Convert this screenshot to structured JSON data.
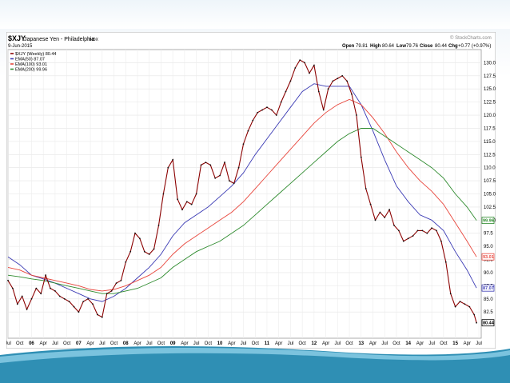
{
  "chart_data": {
    "type": "line",
    "symbol": "$XJY",
    "title": "Japanese Yen - Philadelphia",
    "exchange": "INDX",
    "date": "9-Jun-2015",
    "quote": {
      "open_label": "Open",
      "open": "79.81",
      "high_label": "High",
      "high": "80.64",
      "low_label": "Low",
      "low": "79.76",
      "close_label": "Close",
      "close": "80.44",
      "chg_label": "Chg",
      "chg": "+0.77 (+0.97%)"
    },
    "watermark": "© StockCharts.com",
    "legend": [
      {
        "label": "$XJY (Weekly) 80.44",
        "color": "#8b0000"
      },
      {
        "label": "EMA(50) 87.07",
        "color": "#3a3ab4"
      },
      {
        "label": "EMA(100) 93.01",
        "color": "#e8463c"
      },
      {
        "label": "EMA(200) 99.96",
        "color": "#2e8b2e"
      }
    ],
    "ylim": [
      77.5,
      132.5
    ],
    "y_ticks": [
      "82.5",
      "85.0",
      "87.5",
      "90.0",
      "92.5",
      "95.0",
      "97.5",
      "100.0",
      "102.5",
      "105.0",
      "107.5",
      "110.0",
      "112.5",
      "115.0",
      "117.5",
      "120.0",
      "122.5",
      "125.0",
      "127.5",
      "130.0"
    ],
    "y_tick_values": [
      82.5,
      85,
      87.5,
      90,
      92.5,
      95,
      97.5,
      100,
      102.5,
      105,
      107.5,
      110,
      112.5,
      115,
      117.5,
      120,
      122.5,
      125,
      127.5,
      130
    ],
    "end_labels": [
      {
        "text": "99.96",
        "value": 99.96,
        "color": "#2e8b2e"
      },
      {
        "text": "93.01",
        "value": 93.01,
        "color": "#e8463c"
      },
      {
        "text": "87.07",
        "value": 87.07,
        "color": "#3a3ab4"
      },
      {
        "text": "80.44",
        "value": 80.44,
        "color": "#000000"
      }
    ],
    "x_range": [
      2005.5,
      2015.55
    ],
    "x_ticks": [
      {
        "label": "Jul",
        "t": 2005.5,
        "bold": false
      },
      {
        "label": "Oct",
        "t": 2005.75,
        "bold": false
      },
      {
        "label": "06",
        "t": 2006.0,
        "bold": true
      },
      {
        "label": "Apr",
        "t": 2006.25,
        "bold": false
      },
      {
        "label": "Jul",
        "t": 2006.5,
        "bold": false
      },
      {
        "label": "Oct",
        "t": 2006.75,
        "bold": false
      },
      {
        "label": "07",
        "t": 2007.0,
        "bold": true
      },
      {
        "label": "Apr",
        "t": 2007.25,
        "bold": false
      },
      {
        "label": "Jul",
        "t": 2007.5,
        "bold": false
      },
      {
        "label": "Oct",
        "t": 2007.75,
        "bold": false
      },
      {
        "label": "08",
        "t": 2008.0,
        "bold": true
      },
      {
        "label": "Apr",
        "t": 2008.25,
        "bold": false
      },
      {
        "label": "Jul",
        "t": 2008.5,
        "bold": false
      },
      {
        "label": "Oct",
        "t": 2008.75,
        "bold": false
      },
      {
        "label": "09",
        "t": 2009.0,
        "bold": true
      },
      {
        "label": "Apr",
        "t": 2009.25,
        "bold": false
      },
      {
        "label": "Jul",
        "t": 2009.5,
        "bold": false
      },
      {
        "label": "Oct",
        "t": 2009.75,
        "bold": false
      },
      {
        "label": "10",
        "t": 2010.0,
        "bold": true
      },
      {
        "label": "Apr",
        "t": 2010.25,
        "bold": false
      },
      {
        "label": "Jul",
        "t": 2010.5,
        "bold": false
      },
      {
        "label": "Oct",
        "t": 2010.75,
        "bold": false
      },
      {
        "label": "11",
        "t": 2011.0,
        "bold": true
      },
      {
        "label": "Apr",
        "t": 2011.25,
        "bold": false
      },
      {
        "label": "Jul",
        "t": 2011.5,
        "bold": false
      },
      {
        "label": "Oct",
        "t": 2011.75,
        "bold": false
      },
      {
        "label": "12",
        "t": 2012.0,
        "bold": true
      },
      {
        "label": "Apr",
        "t": 2012.25,
        "bold": false
      },
      {
        "label": "Jul",
        "t": 2012.5,
        "bold": false
      },
      {
        "label": "Oct",
        "t": 2012.75,
        "bold": false
      },
      {
        "label": "13",
        "t": 2013.0,
        "bold": true
      },
      {
        "label": "Apr",
        "t": 2013.25,
        "bold": false
      },
      {
        "label": "Jul",
        "t": 2013.5,
        "bold": false
      },
      {
        "label": "Oct",
        "t": 2013.75,
        "bold": false
      },
      {
        "label": "14",
        "t": 2014.0,
        "bold": true
      },
      {
        "label": "Apr",
        "t": 2014.25,
        "bold": false
      },
      {
        "label": "Jul",
        "t": 2014.5,
        "bold": false
      },
      {
        "label": "Oct",
        "t": 2014.75,
        "bold": false
      },
      {
        "label": "15",
        "t": 2015.0,
        "bold": true
      },
      {
        "label": "Apr",
        "t": 2015.25,
        "bold": false
      },
      {
        "label": "Jul",
        "t": 2015.5,
        "bold": false
      }
    ],
    "series": [
      {
        "name": "$XJY (Weekly)",
        "color": "#8b0000",
        "style": "bars",
        "points": [
          [
            2005.5,
            88.5
          ],
          [
            2005.6,
            87.0
          ],
          [
            2005.7,
            84.0
          ],
          [
            2005.8,
            85.5
          ],
          [
            2005.9,
            83.0
          ],
          [
            2006.0,
            85.0
          ],
          [
            2006.1,
            87.0
          ],
          [
            2006.2,
            86.0
          ],
          [
            2006.3,
            89.5
          ],
          [
            2006.4,
            87.0
          ],
          [
            2006.5,
            86.5
          ],
          [
            2006.6,
            85.5
          ],
          [
            2006.7,
            85.0
          ],
          [
            2006.8,
            84.5
          ],
          [
            2006.9,
            83.5
          ],
          [
            2007.0,
            82.5
          ],
          [
            2007.1,
            84.5
          ],
          [
            2007.2,
            85.0
          ],
          [
            2007.3,
            84.0
          ],
          [
            2007.4,
            82.0
          ],
          [
            2007.5,
            81.5
          ],
          [
            2007.6,
            86.0
          ],
          [
            2007.7,
            86.5
          ],
          [
            2007.8,
            88.0
          ],
          [
            2007.9,
            88.5
          ],
          [
            2008.0,
            92.0
          ],
          [
            2008.1,
            94.0
          ],
          [
            2008.2,
            97.5
          ],
          [
            2008.3,
            96.5
          ],
          [
            2008.4,
            94.0
          ],
          [
            2008.5,
            93.5
          ],
          [
            2008.6,
            94.5
          ],
          [
            2008.7,
            99.0
          ],
          [
            2008.8,
            105.0
          ],
          [
            2008.9,
            110.0
          ],
          [
            2009.0,
            111.5
          ],
          [
            2009.1,
            104.0
          ],
          [
            2009.2,
            102.0
          ],
          [
            2009.3,
            103.5
          ],
          [
            2009.4,
            103.0
          ],
          [
            2009.5,
            105.0
          ],
          [
            2009.6,
            110.5
          ],
          [
            2009.7,
            111.0
          ],
          [
            2009.8,
            110.5
          ],
          [
            2009.9,
            108.0
          ],
          [
            2010.0,
            108.5
          ],
          [
            2010.1,
            111.0
          ],
          [
            2010.2,
            107.5
          ],
          [
            2010.3,
            107.0
          ],
          [
            2010.4,
            110.0
          ],
          [
            2010.5,
            114.5
          ],
          [
            2010.6,
            117.0
          ],
          [
            2010.7,
            119.0
          ],
          [
            2010.8,
            120.5
          ],
          [
            2010.9,
            121.0
          ],
          [
            2011.0,
            121.5
          ],
          [
            2011.1,
            121.0
          ],
          [
            2011.2,
            120.0
          ],
          [
            2011.3,
            122.5
          ],
          [
            2011.4,
            124.5
          ],
          [
            2011.5,
            126.5
          ],
          [
            2011.6,
            129.0
          ],
          [
            2011.7,
            130.5
          ],
          [
            2011.8,
            130.0
          ],
          [
            2011.9,
            128.0
          ],
          [
            2012.0,
            129.5
          ],
          [
            2012.1,
            124.5
          ],
          [
            2012.2,
            121.0
          ],
          [
            2012.3,
            125.0
          ],
          [
            2012.4,
            126.5
          ],
          [
            2012.5,
            127.0
          ],
          [
            2012.6,
            127.5
          ],
          [
            2012.7,
            126.5
          ],
          [
            2012.8,
            124.0
          ],
          [
            2012.9,
            120.0
          ],
          [
            2013.0,
            112.0
          ],
          [
            2013.1,
            106.0
          ],
          [
            2013.2,
            103.0
          ],
          [
            2013.3,
            100.0
          ],
          [
            2013.4,
            101.5
          ],
          [
            2013.5,
            100.5
          ],
          [
            2013.6,
            102.0
          ],
          [
            2013.7,
            99.0
          ],
          [
            2013.8,
            98.0
          ],
          [
            2013.9,
            96.0
          ],
          [
            2014.0,
            96.5
          ],
          [
            2014.1,
            97.0
          ],
          [
            2014.2,
            98.0
          ],
          [
            2014.3,
            98.0
          ],
          [
            2014.4,
            97.5
          ],
          [
            2014.5,
            98.5
          ],
          [
            2014.6,
            98.0
          ],
          [
            2014.7,
            96.0
          ],
          [
            2014.8,
            92.0
          ],
          [
            2014.9,
            86.0
          ],
          [
            2015.0,
            83.5
          ],
          [
            2015.1,
            84.5
          ],
          [
            2015.2,
            84.0
          ],
          [
            2015.3,
            83.5
          ],
          [
            2015.4,
            82.0
          ],
          [
            2015.45,
            80.44
          ]
        ]
      },
      {
        "name": "EMA(50)",
        "color": "#3a3ab4",
        "style": "line",
        "points": [
          [
            2005.5,
            93.0
          ],
          [
            2005.75,
            91.5
          ],
          [
            2006.0,
            89.5
          ],
          [
            2006.25,
            88.8
          ],
          [
            2006.5,
            88.0
          ],
          [
            2006.75,
            87.0
          ],
          [
            2007.0,
            86.0
          ],
          [
            2007.25,
            85.0
          ],
          [
            2007.5,
            84.5
          ],
          [
            2007.75,
            85.5
          ],
          [
            2008.0,
            87.0
          ],
          [
            2008.25,
            89.0
          ],
          [
            2008.5,
            91.0
          ],
          [
            2008.75,
            93.5
          ],
          [
            2009.0,
            97.0
          ],
          [
            2009.25,
            99.5
          ],
          [
            2009.5,
            101.0
          ],
          [
            2009.75,
            102.5
          ],
          [
            2010.0,
            104.5
          ],
          [
            2010.25,
            106.5
          ],
          [
            2010.5,
            109.0
          ],
          [
            2010.75,
            112.5
          ],
          [
            2011.0,
            115.5
          ],
          [
            2011.25,
            118.5
          ],
          [
            2011.5,
            121.5
          ],
          [
            2011.75,
            124.5
          ],
          [
            2012.0,
            126.0
          ],
          [
            2012.25,
            125.5
          ],
          [
            2012.5,
            125.5
          ],
          [
            2012.75,
            125.5
          ],
          [
            2013.0,
            122.0
          ],
          [
            2013.25,
            117.0
          ],
          [
            2013.5,
            111.5
          ],
          [
            2013.75,
            106.5
          ],
          [
            2014.0,
            103.5
          ],
          [
            2014.25,
            101.0
          ],
          [
            2014.5,
            100.0
          ],
          [
            2014.75,
            98.0
          ],
          [
            2015.0,
            94.0
          ],
          [
            2015.25,
            90.5
          ],
          [
            2015.45,
            87.07
          ]
        ]
      },
      {
        "name": "EMA(100)",
        "color": "#e8463c",
        "style": "line",
        "points": [
          [
            2005.5,
            91.0
          ],
          [
            2005.75,
            90.5
          ],
          [
            2006.0,
            89.5
          ],
          [
            2006.25,
            89.0
          ],
          [
            2006.5,
            88.5
          ],
          [
            2006.75,
            88.0
          ],
          [
            2007.0,
            87.5
          ],
          [
            2007.25,
            86.8
          ],
          [
            2007.5,
            86.5
          ],
          [
            2007.75,
            86.8
          ],
          [
            2008.0,
            87.5
          ],
          [
            2008.25,
            88.5
          ],
          [
            2008.5,
            89.5
          ],
          [
            2008.75,
            91.0
          ],
          [
            2009.0,
            93.5
          ],
          [
            2009.25,
            95.5
          ],
          [
            2009.5,
            97.0
          ],
          [
            2009.75,
            98.5
          ],
          [
            2010.0,
            100.0
          ],
          [
            2010.25,
            101.5
          ],
          [
            2010.5,
            103.5
          ],
          [
            2010.75,
            106.0
          ],
          [
            2011.0,
            108.5
          ],
          [
            2011.25,
            111.0
          ],
          [
            2011.5,
            113.5
          ],
          [
            2011.75,
            116.0
          ],
          [
            2012.0,
            118.5
          ],
          [
            2012.25,
            120.5
          ],
          [
            2012.5,
            122.0
          ],
          [
            2012.75,
            123.0
          ],
          [
            2013.0,
            122.0
          ],
          [
            2013.25,
            119.5
          ],
          [
            2013.5,
            116.5
          ],
          [
            2013.75,
            113.0
          ],
          [
            2014.0,
            110.0
          ],
          [
            2014.25,
            107.5
          ],
          [
            2014.5,
            105.5
          ],
          [
            2014.75,
            103.0
          ],
          [
            2015.0,
            99.5
          ],
          [
            2015.25,
            96.0
          ],
          [
            2015.45,
            93.01
          ]
        ]
      },
      {
        "name": "EMA(200)",
        "color": "#2e8b2e",
        "style": "line",
        "points": [
          [
            2005.5,
            89.5
          ],
          [
            2005.75,
            89.2
          ],
          [
            2006.0,
            88.8
          ],
          [
            2006.25,
            88.5
          ],
          [
            2006.5,
            88.0
          ],
          [
            2006.75,
            87.5
          ],
          [
            2007.0,
            87.0
          ],
          [
            2007.25,
            86.5
          ],
          [
            2007.5,
            86.0
          ],
          [
            2007.75,
            86.0
          ],
          [
            2008.0,
            86.5
          ],
          [
            2008.25,
            87.0
          ],
          [
            2008.5,
            88.0
          ],
          [
            2008.75,
            89.0
          ],
          [
            2009.0,
            91.0
          ],
          [
            2009.25,
            92.5
          ],
          [
            2009.5,
            94.0
          ],
          [
            2009.75,
            95.0
          ],
          [
            2010.0,
            96.0
          ],
          [
            2010.25,
            97.5
          ],
          [
            2010.5,
            99.0
          ],
          [
            2010.75,
            101.0
          ],
          [
            2011.0,
            103.0
          ],
          [
            2011.25,
            105.0
          ],
          [
            2011.5,
            107.0
          ],
          [
            2011.75,
            109.0
          ],
          [
            2012.0,
            111.0
          ],
          [
            2012.25,
            113.0
          ],
          [
            2012.5,
            115.0
          ],
          [
            2012.75,
            116.5
          ],
          [
            2013.0,
            117.5
          ],
          [
            2013.25,
            117.5
          ],
          [
            2013.5,
            116.0
          ],
          [
            2013.75,
            114.5
          ],
          [
            2014.0,
            113.0
          ],
          [
            2014.25,
            111.5
          ],
          [
            2014.5,
            110.0
          ],
          [
            2014.75,
            108.0
          ],
          [
            2015.0,
            105.0
          ],
          [
            2015.25,
            102.5
          ],
          [
            2015.45,
            99.96
          ]
        ]
      }
    ]
  }
}
